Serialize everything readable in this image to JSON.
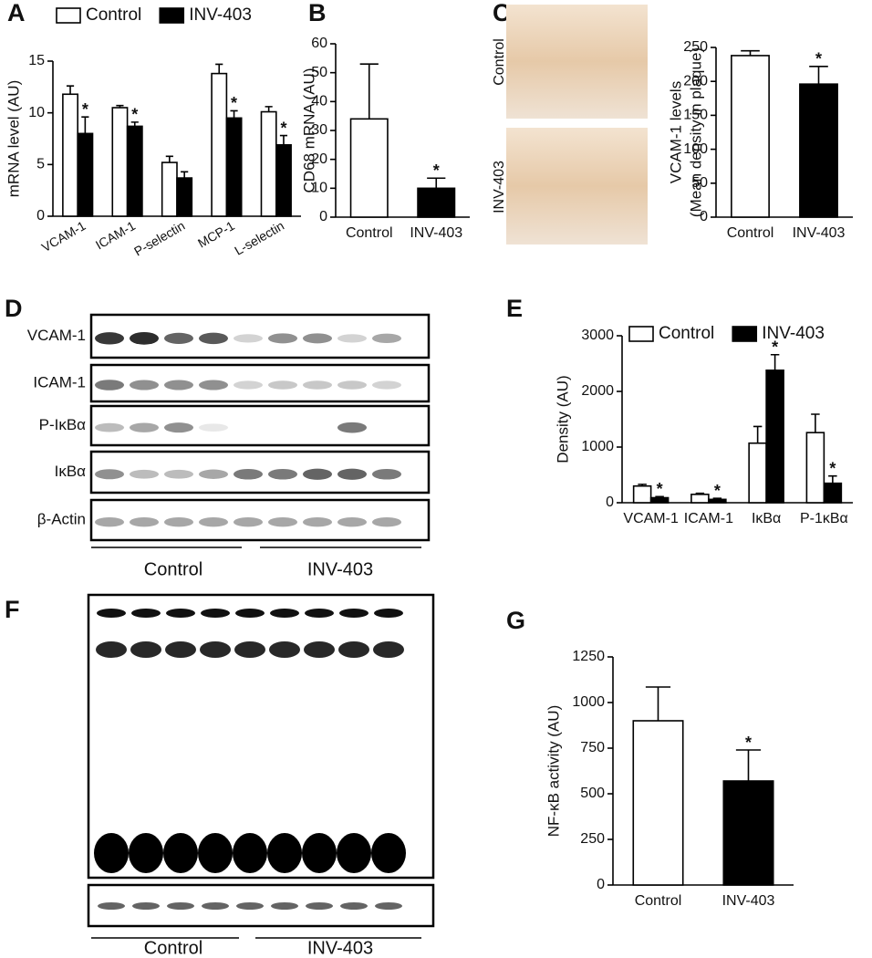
{
  "panel_letters": [
    "A",
    "B",
    "C",
    "D",
    "E",
    "F",
    "G"
  ],
  "histology": {
    "labels": [
      "Control",
      "INV-403"
    ]
  },
  "blot_d": {
    "rows": [
      "VCAM-1",
      "ICAM-1",
      "P-IκBα",
      "IκBα",
      "β-Actin"
    ],
    "groups": [
      "Control",
      "INV-403"
    ]
  },
  "blot_f": {
    "groups": [
      "Control",
      "INV-403"
    ]
  },
  "chart_data": [
    {
      "type": "bar",
      "ylabel": [
        "mRNA level (AU)"
      ],
      "categories": [
        "VCAM-1",
        "ICAM-1",
        "P-selectin",
        "MCP-1",
        "L-selectin"
      ],
      "series": [
        {
          "name": "Control",
          "color": "#ffffff",
          "values": [
            11.8,
            10.5,
            5.2,
            13.8,
            10.1
          ],
          "errors": [
            0.8,
            0.2,
            0.6,
            0.9,
            0.5
          ],
          "markers": [
            null,
            null,
            null,
            null,
            null
          ]
        },
        {
          "name": "INV-403",
          "color": "#000000",
          "values": [
            8.0,
            8.7,
            3.7,
            9.5,
            6.9
          ],
          "errors": [
            1.6,
            0.4,
            0.6,
            0.7,
            0.9
          ],
          "markers": [
            "*",
            "*",
            null,
            "*",
            "*"
          ]
        }
      ],
      "ylim": [
        0,
        15
      ],
      "yticks": [
        0,
        5,
        10,
        15
      ],
      "legend": "top"
    },
    {
      "type": "bar",
      "ylabel": [
        "CD68 mRNA (AU)"
      ],
      "categories": [
        "Control",
        "INV-403"
      ],
      "values": [
        34,
        10
      ],
      "errors": [
        19,
        3.5
      ],
      "markers": [
        null,
        "*"
      ],
      "colors": [
        "#ffffff",
        "#000000"
      ],
      "ylim": [
        0,
        60
      ],
      "yticks": [
        0,
        10,
        20,
        30,
        40,
        50,
        60
      ]
    },
    {
      "type": "bar",
      "ylabel": [
        "VCAM-1 levels",
        "(Mean density in plaque)"
      ],
      "categories": [
        "Control",
        "INV-403"
      ],
      "values": [
        238,
        196
      ],
      "errors": [
        7,
        26
      ],
      "markers": [
        null,
        "*"
      ],
      "colors": [
        "#ffffff",
        "#000000"
      ],
      "ylim": [
        0,
        250
      ],
      "yticks": [
        0,
        50,
        100,
        150,
        200,
        250
      ]
    },
    {
      "type": "bar",
      "ylabel": [
        "Density (AU)"
      ],
      "categories": [
        "VCAM-1",
        "ICAM-1",
        "IκBα",
        "P-1κBα"
      ],
      "series": [
        {
          "name": "Control",
          "color": "#ffffff",
          "values": [
            300,
            150,
            1070,
            1260
          ],
          "errors": [
            30,
            20,
            300,
            330
          ],
          "markers": [
            null,
            null,
            null,
            null
          ]
        },
        {
          "name": "INV-403",
          "color": "#000000",
          "values": [
            90,
            60,
            2380,
            350
          ],
          "errors": [
            20,
            20,
            280,
            130
          ],
          "markers": [
            "*",
            "*",
            "*",
            "*"
          ]
        }
      ],
      "ylim": [
        0,
        3000
      ],
      "yticks": [
        0,
        1000,
        2000,
        3000
      ],
      "legend": "top"
    },
    {
      "type": "bar",
      "ylabel": [
        "NF-κB activity (AU)"
      ],
      "categories": [
        "Control",
        "INV-403"
      ],
      "values": [
        900,
        570
      ],
      "errors": [
        185,
        170
      ],
      "markers": [
        null,
        "*"
      ],
      "colors": [
        "#ffffff",
        "#000000"
      ],
      "ylim": [
        0,
        1250
      ],
      "yticks": [
        0,
        250,
        500,
        750,
        1000,
        1250
      ]
    }
  ]
}
